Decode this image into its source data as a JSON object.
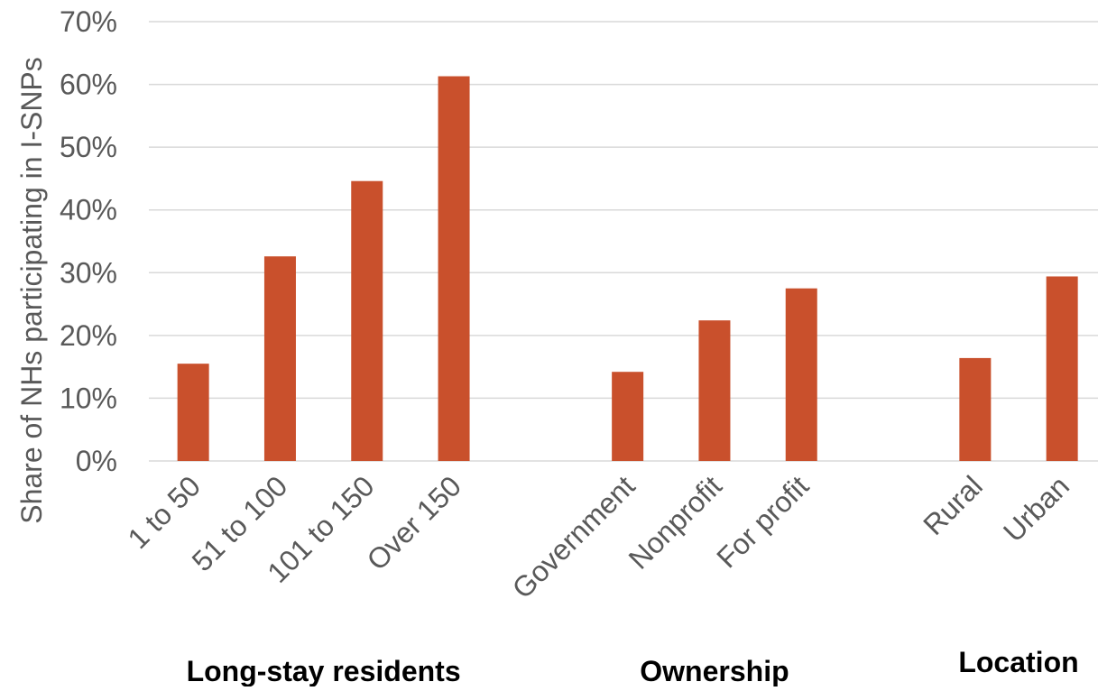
{
  "chart_data": {
    "type": "bar",
    "title": "",
    "xlabel": "",
    "ylabel": "Share of NHs participating in I-SNPs",
    "ylim": [
      0,
      70
    ],
    "yticks": [
      "0%",
      "10%",
      "20%",
      "30%",
      "40%",
      "50%",
      "60%",
      "70%"
    ],
    "grid": true,
    "legend": "none",
    "colors": {
      "bar": "#c9502c",
      "grid": "#d9d9d9",
      "text": "#595959",
      "group_label": "#000000"
    },
    "groups": [
      {
        "label": "Long-stay residents",
        "categories": [
          "1 to 50",
          "51 to 100",
          "101 to 150",
          "Over 150"
        ],
        "values": [
          15.5,
          32.6,
          44.6,
          61.3
        ]
      },
      {
        "label": "Ownership",
        "categories": [
          "Government",
          "Nonprofit",
          "For profit"
        ],
        "values": [
          14.2,
          22.4,
          27.5
        ]
      },
      {
        "label": "Location",
        "categories": [
          "Rural",
          "Urban"
        ],
        "values": [
          16.4,
          29.4
        ]
      }
    ]
  }
}
